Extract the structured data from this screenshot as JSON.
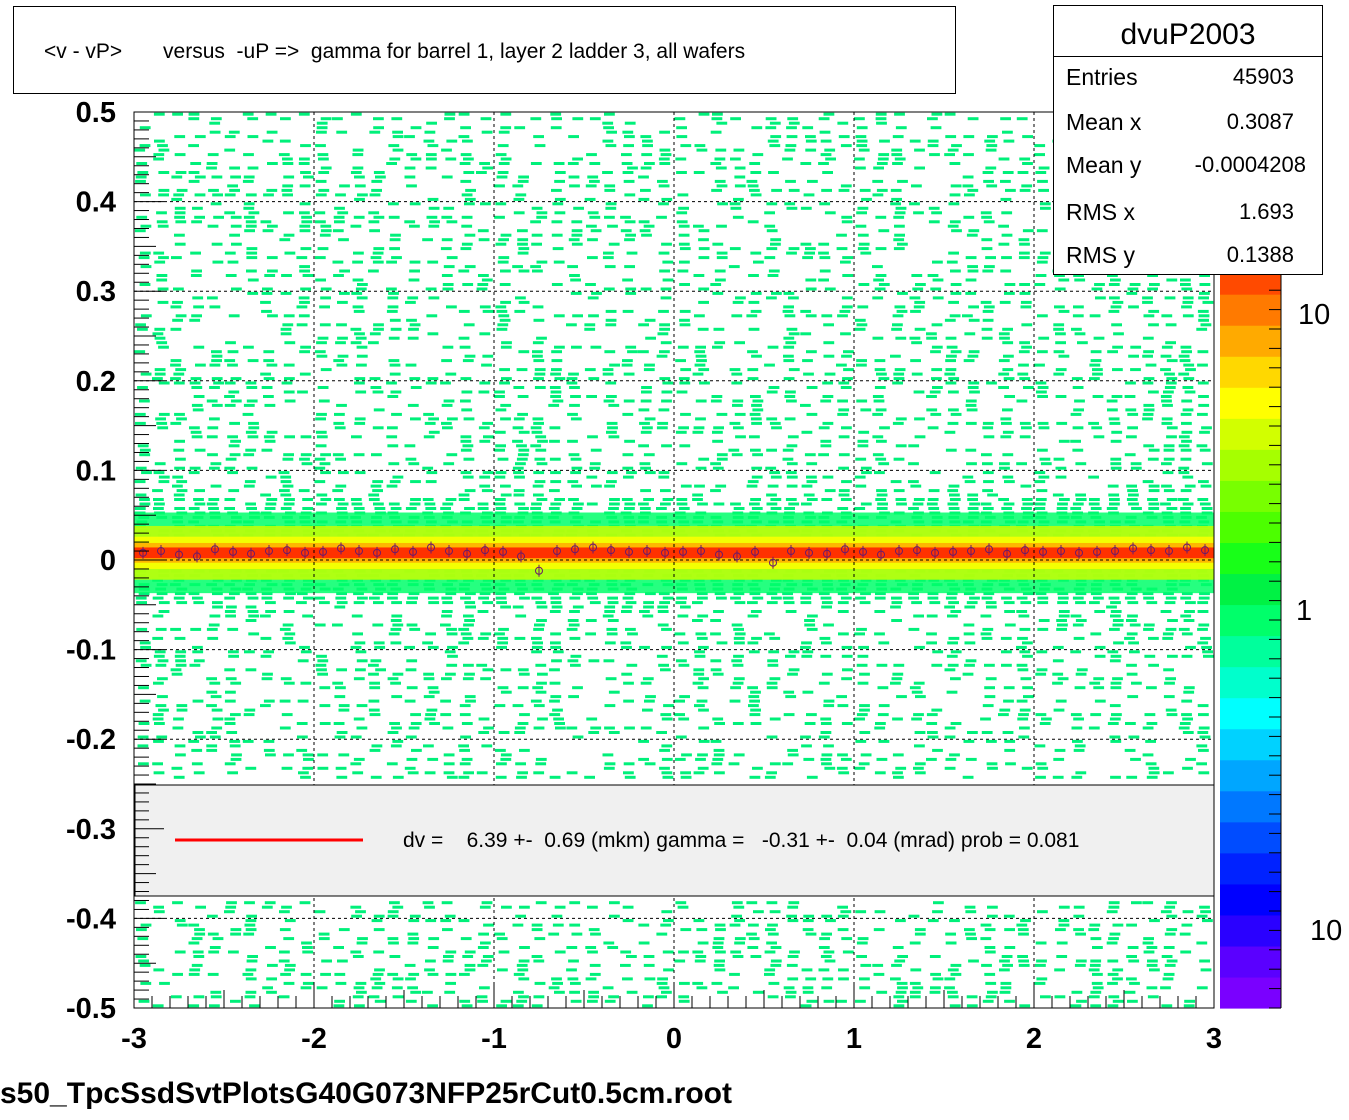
{
  "title": "<v - vP>       versus  -uP =>  gamma for barrel 1, layer 2 ladder 3, all wafers",
  "stats": {
    "name": "dvuP2003",
    "rows": [
      {
        "label": "Entries",
        "value": "45903"
      },
      {
        "label": "Mean x",
        "value": "0.3087"
      },
      {
        "label": "Mean y",
        "value": "-0.0004208"
      },
      {
        "label": "RMS x",
        "value": "1.693"
      },
      {
        "label": "RMS y",
        "value": "0.1388"
      }
    ]
  },
  "legend": {
    "text": "dv =    6.39 +-  0.69 (mkm) gamma =   -0.31 +-  0.04 (mrad) prob = 0.081",
    "line_color": "#ff0000"
  },
  "footer": "s50_TpcSsdSvtPlotsG40G073NFP25rCut0.5cm.root",
  "colors": {
    "scatter": "#00f07a",
    "band_core": "#ff1a00",
    "band_mid": "#ffaa00",
    "band_outer": "#c8ff00",
    "profile_marker": "#6b1a6b",
    "grid": "#000000"
  },
  "chart_data": {
    "type": "heatmap",
    "title": "<v - vP>       versus  -uP =>  gamma for barrel 1, layer 2 ladder 3, all wafers",
    "xlabel": "",
    "ylabel": "",
    "xlim": [
      -3,
      3
    ],
    "ylim": [
      -0.5,
      0.5
    ],
    "x_ticks": [
      -3,
      -2,
      -1,
      0,
      1,
      2,
      3
    ],
    "y_ticks": [
      0.5,
      0.4,
      0.3,
      0.2,
      0.1,
      0,
      -0.1,
      -0.2,
      -0.3,
      -0.4,
      -0.5
    ],
    "grid": true,
    "z_scale": "log",
    "z_tick_labels": [
      "10",
      "1",
      "10"
    ],
    "z_palette": [
      "#7a00ff",
      "#5a00ff",
      "#2a00ff",
      "#0000ff",
      "#0022ff",
      "#004cff",
      "#0078ff",
      "#00a6ff",
      "#00d2ff",
      "#00ffff",
      "#00ffcc",
      "#00ff9c",
      "#00ff6a",
      "#00f244",
      "#18ff18",
      "#4cff00",
      "#78ff00",
      "#a6ff00",
      "#d2ff00",
      "#ffff00",
      "#ffd800",
      "#ffaa00",
      "#ff7a00",
      "#ff4a00",
      "#ff1a00"
    ],
    "fit": {
      "dv_mkm": 6.39,
      "dv_err": 0.69,
      "gamma_mrad": -0.31,
      "gamma_err": 0.04,
      "prob": 0.081
    },
    "profile": {
      "x": [
        -2.95,
        -2.85,
        -2.75,
        -2.65,
        -2.55,
        -2.45,
        -2.35,
        -2.25,
        -2.15,
        -2.05,
        -1.95,
        -1.85,
        -1.75,
        -1.65,
        -1.55,
        -1.45,
        -1.35,
        -1.25,
        -1.15,
        -1.05,
        -0.95,
        -0.85,
        -0.75,
        -0.65,
        -0.55,
        -0.45,
        -0.35,
        -0.25,
        -0.15,
        -0.05,
        0.05,
        0.15,
        0.25,
        0.35,
        0.45,
        0.55,
        0.65,
        0.75,
        0.85,
        0.95,
        1.05,
        1.15,
        1.25,
        1.35,
        1.45,
        1.55,
        1.65,
        1.75,
        1.85,
        1.95,
        2.05,
        2.15,
        2.25,
        2.35,
        2.45,
        2.55,
        2.65,
        2.75,
        2.85,
        2.95
      ],
      "y": [
        0.008,
        0.01,
        0.006,
        0.004,
        0.012,
        0.009,
        0.007,
        0.01,
        0.011,
        0.008,
        0.009,
        0.013,
        0.01,
        0.008,
        0.012,
        0.009,
        0.014,
        0.01,
        0.007,
        0.011,
        0.009,
        0.004,
        -0.012,
        0.01,
        0.012,
        0.014,
        0.011,
        0.009,
        0.01,
        0.008,
        0.009,
        0.01,
        0.006,
        0.004,
        0.009,
        -0.003,
        0.01,
        0.008,
        0.007,
        0.012,
        0.009,
        0.006,
        0.01,
        0.011,
        0.008,
        0.009,
        0.01,
        0.012,
        0.007,
        0.011,
        0.009,
        0.01,
        0.008,
        0.009,
        0.01,
        0.013,
        0.011,
        0.01,
        0.014,
        0.011
      ]
    }
  }
}
